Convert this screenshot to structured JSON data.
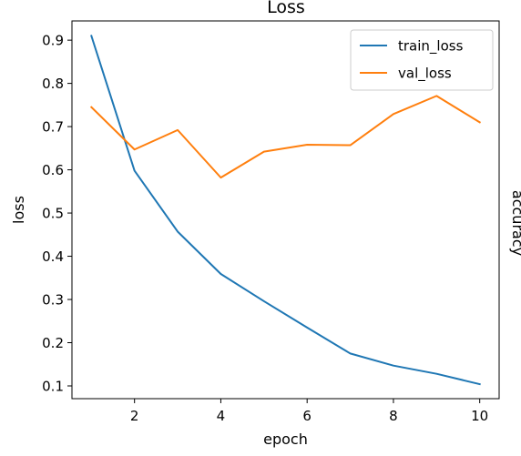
{
  "chart_data": {
    "type": "line",
    "title": "Loss",
    "xlabel": "epoch",
    "ylabel": "loss",
    "xlim": [
      0.55,
      10.45
    ],
    "ylim": [
      0.0705,
      0.9445
    ],
    "xticks": [
      2,
      4,
      6,
      8,
      10
    ],
    "yticks": [
      0.1,
      0.2,
      0.3,
      0.4,
      0.5,
      0.6,
      0.7,
      0.8,
      0.9
    ],
    "grid": false,
    "legend_position": "upper right",
    "x": [
      1,
      2,
      3,
      4,
      5,
      6,
      7,
      8,
      9,
      10
    ],
    "series": [
      {
        "name": "train_loss",
        "color": "#1f77b4",
        "values": [
          0.91,
          0.598,
          0.457,
          0.359,
          0.296,
          0.235,
          0.175,
          0.147,
          0.128,
          0.104
        ]
      },
      {
        "name": "val_loss",
        "color": "#ff7f0e",
        "values": [
          0.745,
          0.647,
          0.692,
          0.582,
          0.642,
          0.658,
          0.657,
          0.729,
          0.771,
          0.71
        ]
      }
    ]
  },
  "secondary_panel": {
    "ylabel": "accuracy"
  }
}
